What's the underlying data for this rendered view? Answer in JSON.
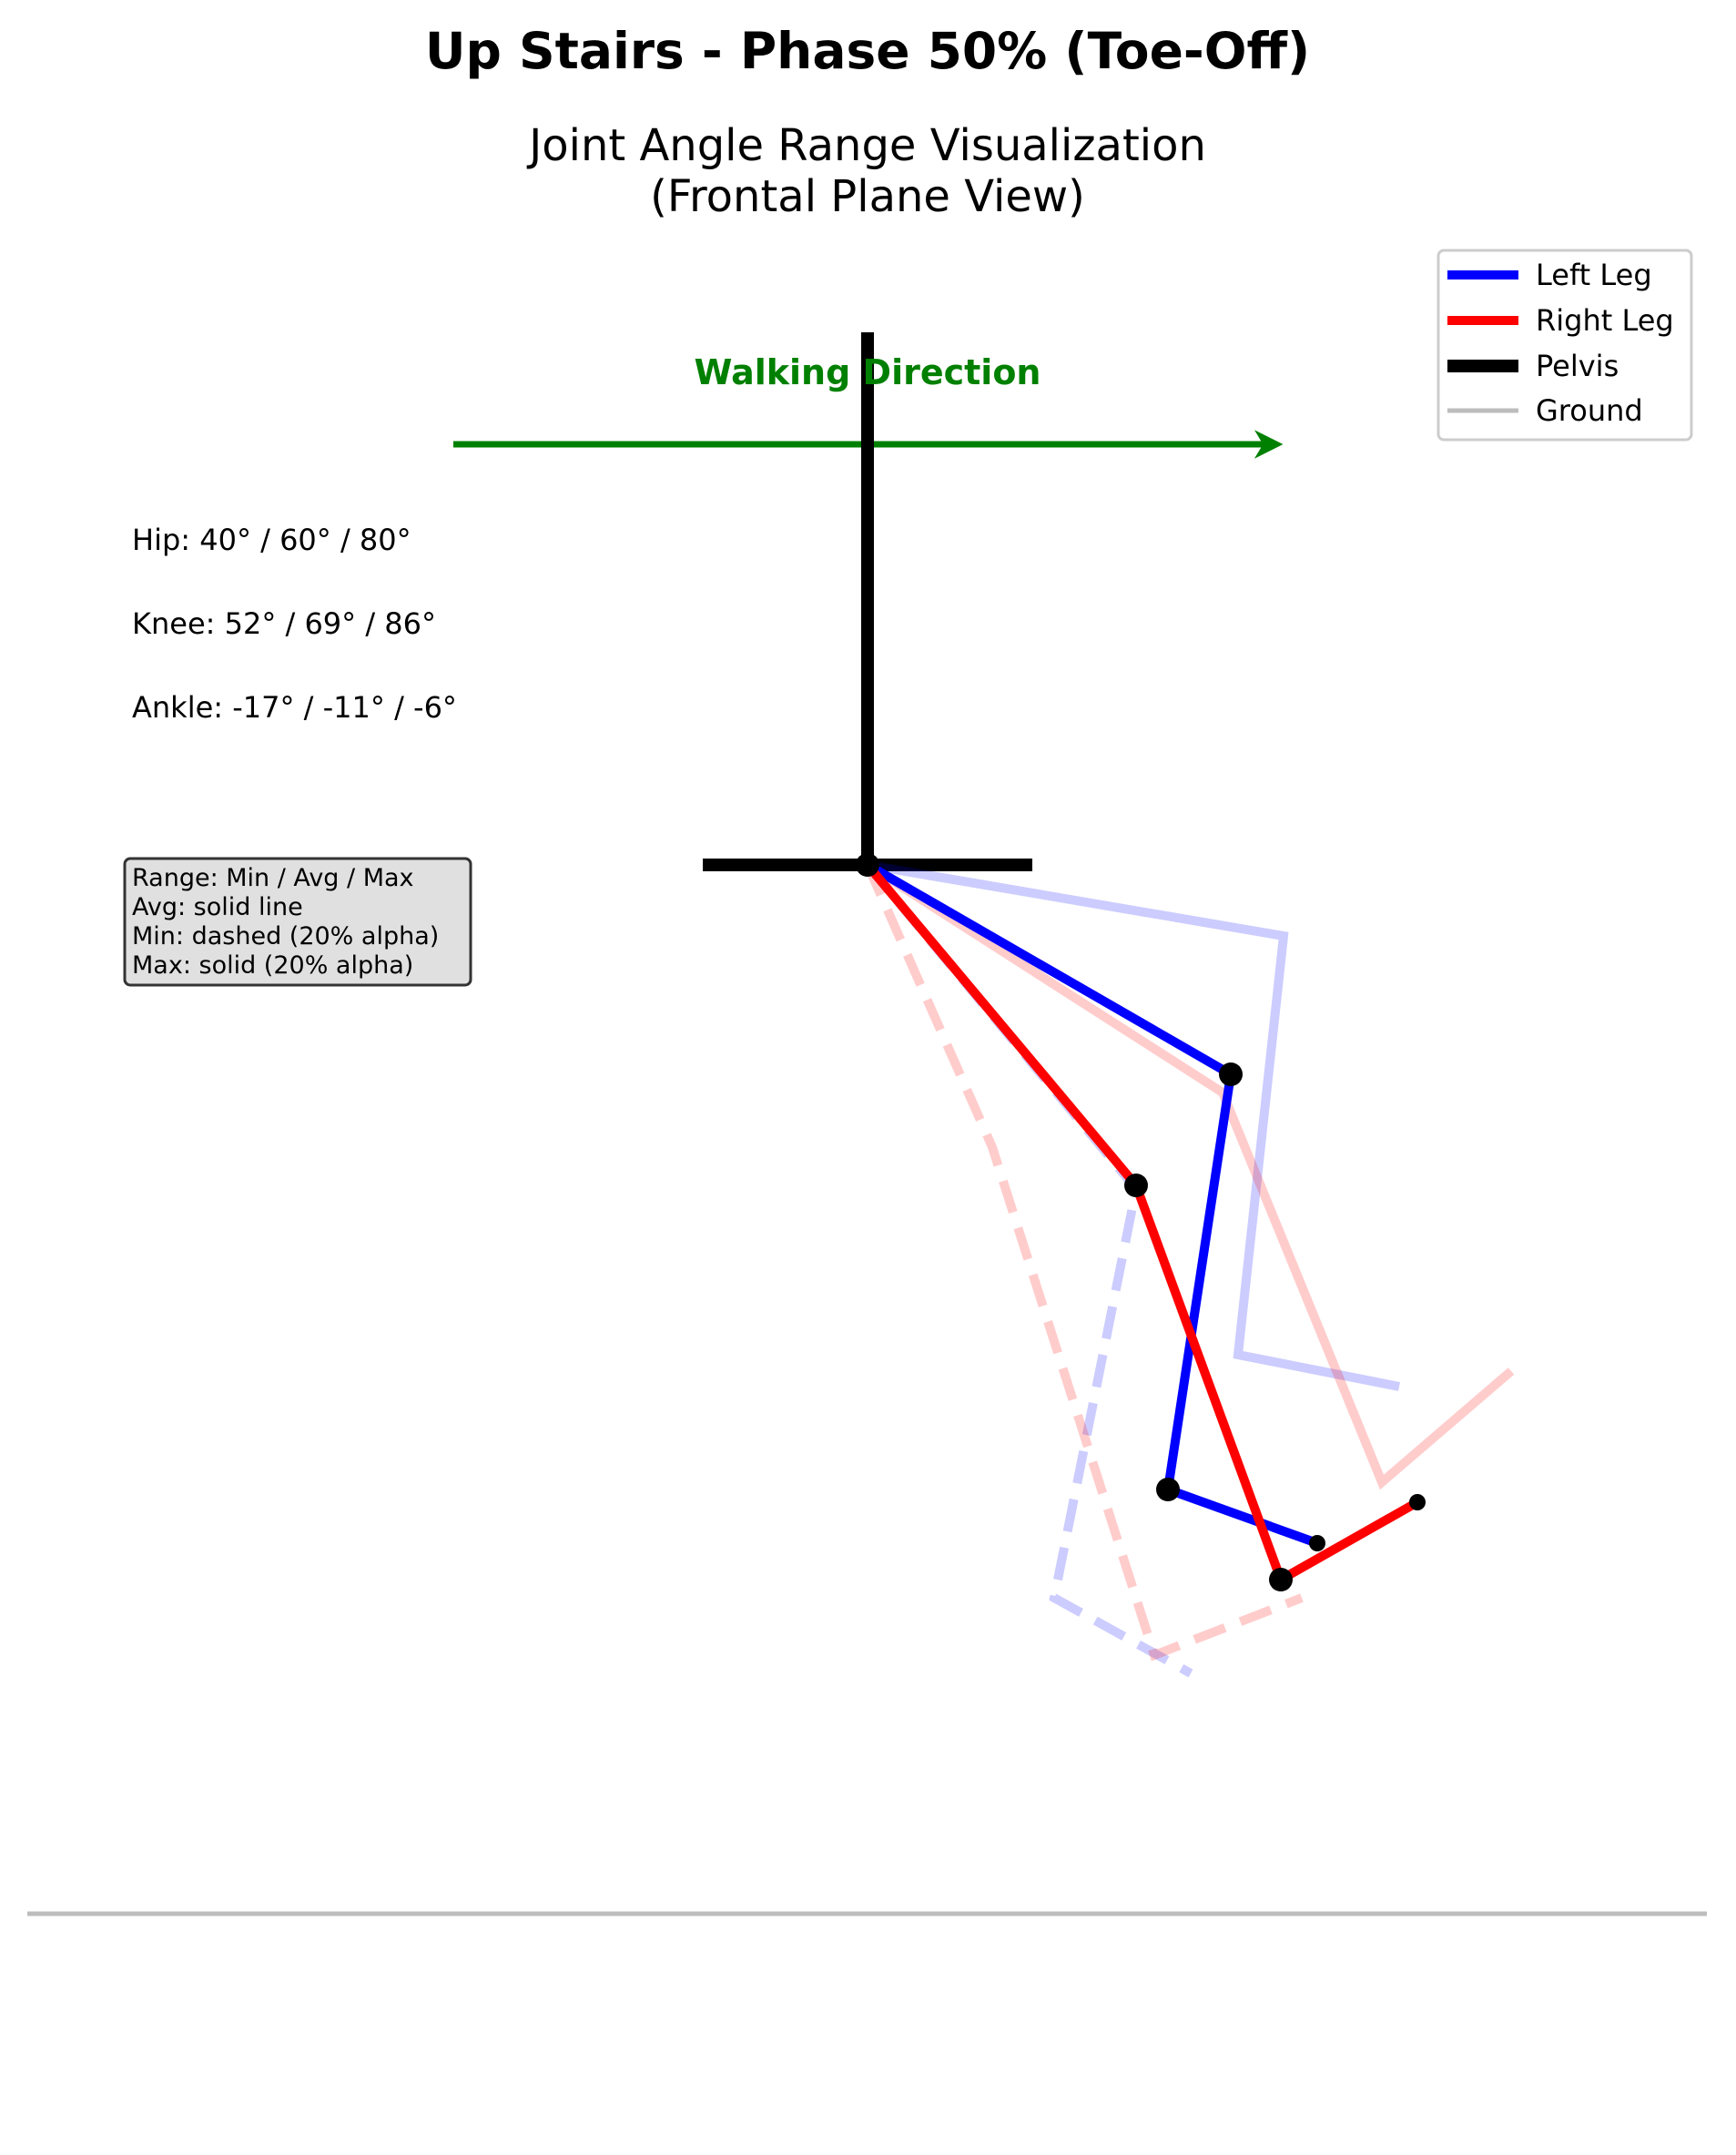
{
  "title": "Up Stairs - Phase 50% (Toe-Off)",
  "subtitle_line1": "Joint Angle Range Visualization",
  "subtitle_line2": "(Frontal Plane View)",
  "direction_label": "Walking Direction",
  "angles": {
    "hip": "Hip: 40° / 60° / 80°",
    "knee": "Knee: 52° / 69° / 86°",
    "ankle": "Ankle: -17° / -11° / -6°"
  },
  "note": {
    "line1": "Range: Min / Avg / Max",
    "line2": "Avg: solid line",
    "line3": "Min: dashed (20% alpha)",
    "line4": "Max: solid (20% alpha)"
  },
  "legend": [
    {
      "label": "Left Leg",
      "color": "#0000ff"
    },
    {
      "label": "Right Leg",
      "color": "#ff0000"
    },
    {
      "label": "Pelvis",
      "color": "#000000"
    },
    {
      "label": "Ground",
      "color": "#bdbdbd"
    }
  ],
  "colors": {
    "left": "#0000ff",
    "right": "#ff0000",
    "pelvis": "#000000",
    "ground": "#bdbdbd",
    "direction": "#008000",
    "note_bg": "#e0e0e0"
  }
}
